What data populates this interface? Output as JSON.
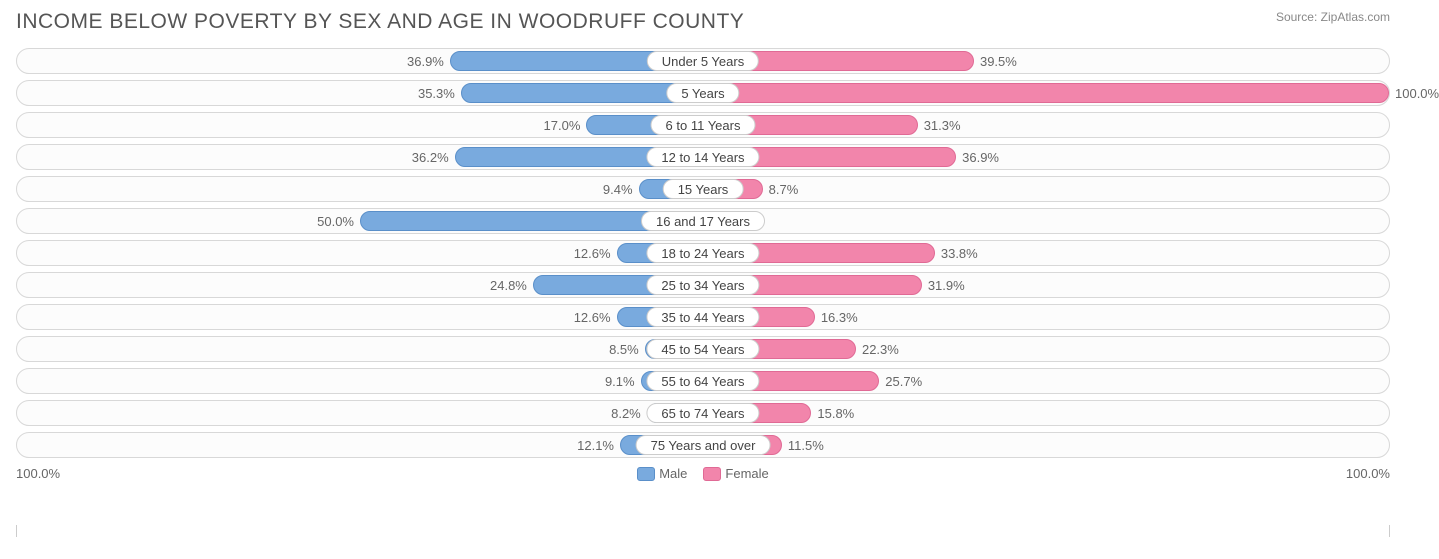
{
  "header": {
    "title": "INCOME BELOW POVERTY BY SEX AND AGE IN WOODRUFF COUNTY",
    "source": "Source: ZipAtlas.com"
  },
  "chart": {
    "type": "diverging-bar",
    "male_color": "#79aade",
    "male_border": "#5a8fc9",
    "female_color": "#f285ab",
    "female_border": "#e06a95",
    "track_border": "#d8d8d8",
    "track_bg": "#fcfcfc",
    "text_color": "#666666",
    "title_color": "#555555",
    "max_value": 100.0,
    "axis_left_label": "100.0%",
    "axis_right_label": "100.0%",
    "legend": {
      "male": "Male",
      "female": "Female"
    },
    "rows": [
      {
        "category": "Under 5 Years",
        "male": 36.9,
        "female": 39.5
      },
      {
        "category": "5 Years",
        "male": 35.3,
        "female": 100.0
      },
      {
        "category": "6 to 11 Years",
        "male": 17.0,
        "female": 31.3
      },
      {
        "category": "12 to 14 Years",
        "male": 36.2,
        "female": 36.9
      },
      {
        "category": "15 Years",
        "male": 9.4,
        "female": 8.7
      },
      {
        "category": "16 and 17 Years",
        "male": 50.0,
        "female": 0.0
      },
      {
        "category": "18 to 24 Years",
        "male": 12.6,
        "female": 33.8
      },
      {
        "category": "25 to 34 Years",
        "male": 24.8,
        "female": 31.9
      },
      {
        "category": "35 to 44 Years",
        "male": 12.6,
        "female": 16.3
      },
      {
        "category": "45 to 54 Years",
        "male": 8.5,
        "female": 22.3
      },
      {
        "category": "55 to 64 Years",
        "male": 9.1,
        "female": 25.7
      },
      {
        "category": "65 to 74 Years",
        "male": 8.2,
        "female": 15.8
      },
      {
        "category": "75 Years and over",
        "male": 12.1,
        "female": 11.5
      }
    ]
  }
}
